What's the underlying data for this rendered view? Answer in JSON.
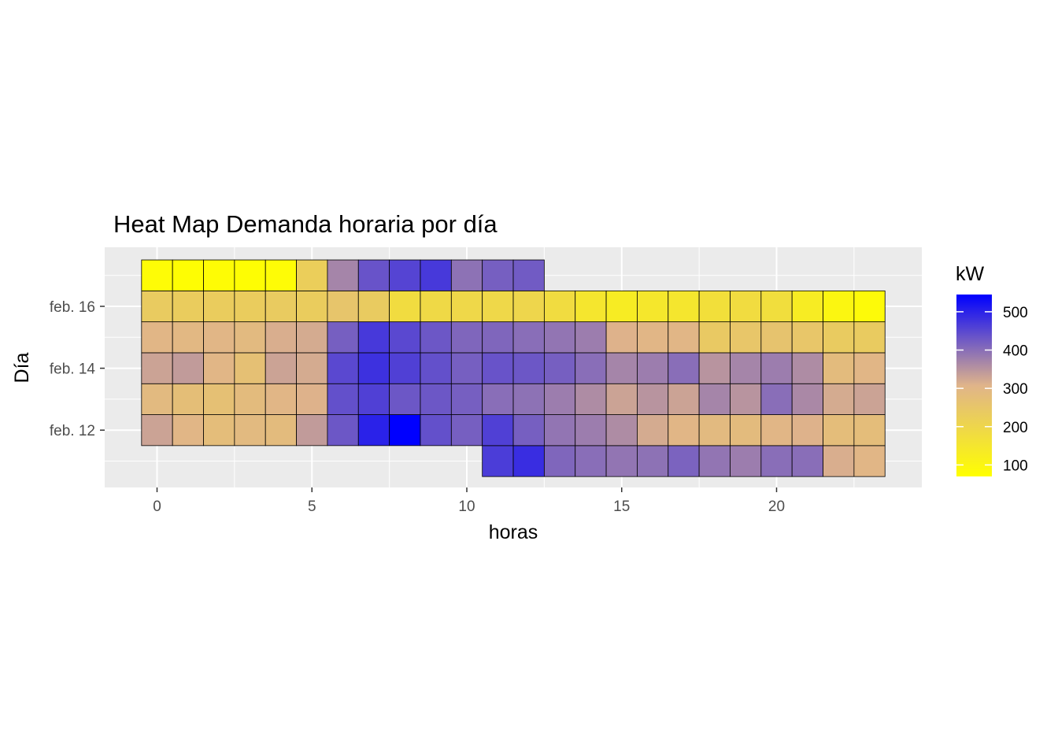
{
  "chart_data": {
    "type": "heatmap",
    "title": "Heat Map Demanda horaria por día",
    "xlabel": "horas",
    "ylabel": "Día",
    "x": [
      0,
      1,
      2,
      3,
      4,
      5,
      6,
      7,
      8,
      9,
      10,
      11,
      12,
      13,
      14,
      15,
      16,
      17,
      18,
      19,
      20,
      21,
      22,
      23
    ],
    "xlim": [
      -1.5,
      24.5
    ],
    "x_ticks": [
      {
        "value": 0,
        "label": "0"
      },
      {
        "value": 5,
        "label": "5"
      },
      {
        "value": 10,
        "label": "10"
      },
      {
        "value": 15,
        "label": "15"
      },
      {
        "value": 20,
        "label": "20"
      }
    ],
    "y_ticks": [
      {
        "row": 1,
        "label": "feb. 12"
      },
      {
        "row": 3,
        "label": "feb. 14"
      },
      {
        "row": 5,
        "label": "feb. 16"
      }
    ],
    "rows": [
      {
        "row": 0,
        "start_hour": 11,
        "values": [
          465,
          485,
          410,
          400,
          390,
          395,
          415,
          390,
          380,
          400,
          400,
          315,
          300
        ]
      },
      {
        "row": 1,
        "start_hour": 0,
        "values": [
          330,
          300,
          280,
          290,
          285,
          340,
          430,
          500,
          545,
          440,
          420,
          460,
          420,
          390,
          380,
          360,
          320,
          300,
          290,
          285,
          300,
          310,
          280,
          280
        ]
      },
      {
        "row": 2,
        "start_hour": 0,
        "values": [
          290,
          275,
          270,
          285,
          300,
          310,
          440,
          460,
          430,
          430,
          420,
          400,
          395,
          380,
          360,
          330,
          350,
          330,
          370,
          350,
          400,
          365,
          320,
          330
        ]
      },
      {
        "row": 3,
        "start_hour": 0,
        "values": [
          330,
          340,
          300,
          270,
          330,
          320,
          450,
          480,
          460,
          440,
          420,
          435,
          430,
          420,
          400,
          370,
          380,
          400,
          350,
          370,
          380,
          360,
          285,
          300
        ]
      },
      {
        "row": 4,
        "start_hour": 0,
        "values": [
          300,
          295,
          300,
          290,
          315,
          320,
          420,
          470,
          450,
          430,
          410,
          410,
          400,
          390,
          380,
          310,
          300,
          300,
          240,
          250,
          260,
          250,
          235,
          235
        ]
      },
      {
        "row": 5,
        "start_hour": 0,
        "values": [
          235,
          230,
          230,
          230,
          235,
          230,
          255,
          235,
          180,
          190,
          195,
          195,
          200,
          180,
          150,
          130,
          145,
          150,
          170,
          180,
          175,
          130,
          100,
          85
        ]
      },
      {
        "row": 6,
        "start_hour": 0,
        "values": [
          80,
          75,
          78,
          75,
          80,
          225,
          370,
          435,
          455,
          470,
          395,
          420,
          425
        ]
      }
    ],
    "legend": {
      "title": "kW",
      "placement": "right",
      "min": 70,
      "max": 545,
      "low_color": "#ffff00",
      "mid_color": "#e0b48a",
      "high_color": "#0000ff",
      "ticks": [
        100,
        200,
        300,
        400,
        500
      ]
    },
    "grid": true,
    "panel_background": "#ebebeb",
    "grid_color": "#ffffff",
    "tile_border_color": "#000000"
  }
}
